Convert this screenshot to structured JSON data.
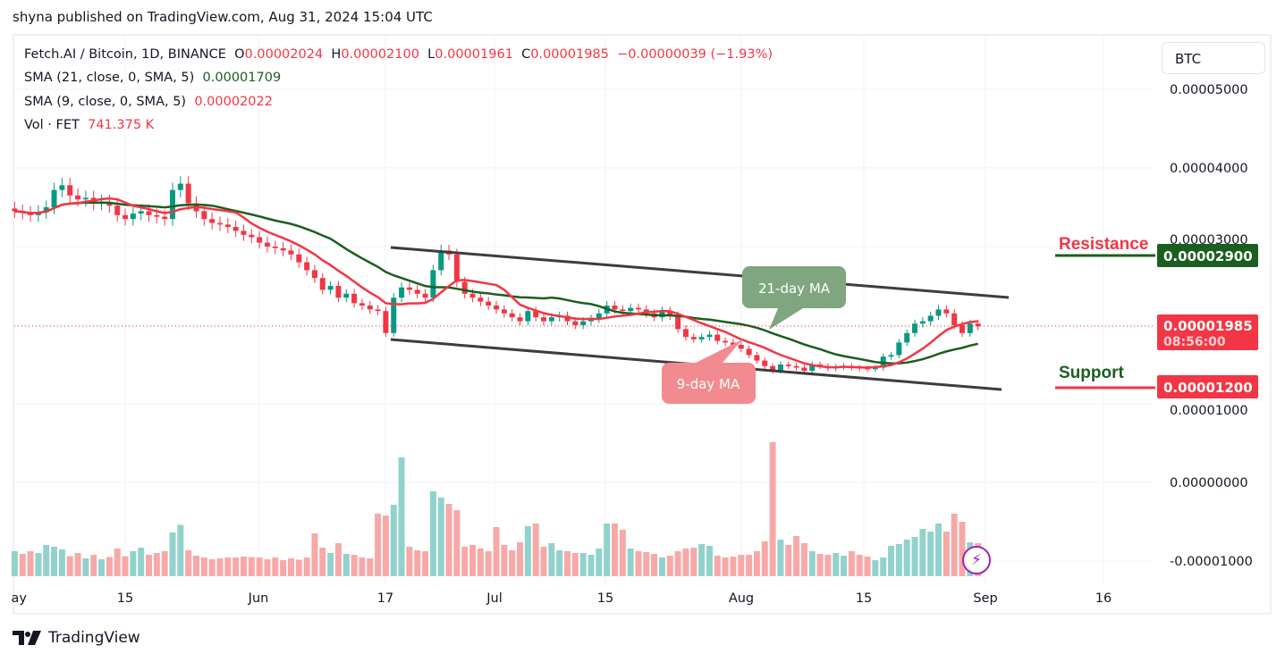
{
  "header": {
    "published": "shyna published on TradingView.com, Aug 31, 2024 15:04 UTC"
  },
  "legend": {
    "symbol": "Fetch.AI / Bitcoin, 1D, BINANCE",
    "o_label": "O",
    "o": "0.00002024",
    "h_label": "H",
    "h": "0.00002100",
    "l_label": "L",
    "l": "0.00001961",
    "c_label": "C",
    "c": "0.00001985",
    "change": "−0.00000039 (−1.93%)",
    "sma21_label": "SMA (21, close, 0, SMA, 5)",
    "sma21_value": "0.00001709",
    "sma9_label": "SMA (9, close, 0, SMA, 5)",
    "sma9_value": "0.00002022",
    "vol_label": "Vol · FET",
    "vol_value": "741.375 K"
  },
  "currency_button": "BTC",
  "price_axis": [
    "0.00005000",
    "0.00004000",
    "0.00003000",
    "0.00001000",
    "0.00000000",
    "-0.00001000"
  ],
  "price_axis_values": [
    5e-05,
    4e-05,
    3e-05,
    1e-05,
    0,
    -1e-05
  ],
  "time_axis": [
    "ay",
    "15",
    "Jun",
    "17",
    "Jul",
    "15",
    "Aug",
    "15",
    "Sep",
    "16"
  ],
  "annotations": {
    "resistance_label": "Resistance",
    "resistance_price": "0.00002900",
    "resistance_value": 2.9e-05,
    "support_label": "Support",
    "support_price": "0.00001200",
    "support_value": 1.2e-05,
    "last_price": "0.00001985",
    "countdown": "08:56:00",
    "ma21_callout": "21-day MA",
    "ma9_callout": "9-day MA"
  },
  "colors": {
    "up": "#089981",
    "down": "#f23645",
    "up_vol": "#92d2cc",
    "down_vol": "#f7a9a7",
    "sma21": "#1b5e20",
    "sma9": "#f23645",
    "channel": "#3d3d3d",
    "callout21": "#7fa67f",
    "callout9": "#f28b8f"
  },
  "brand": "TradingView",
  "chart_data": {
    "type": "candlestick",
    "start_date": "2024-05-01",
    "interval": "1D",
    "closes_1e5": [
      3.45,
      3.43,
      3.4,
      3.44,
      3.5,
      3.72,
      3.78,
      3.65,
      3.6,
      3.62,
      3.55,
      3.57,
      3.52,
      3.4,
      3.35,
      3.42,
      3.45,
      3.4,
      3.38,
      3.35,
      3.72,
      3.8,
      3.55,
      3.45,
      3.35,
      3.3,
      3.28,
      3.25,
      3.2,
      3.15,
      3.12,
      3.05,
      3.0,
      2.98,
      2.95,
      2.9,
      2.8,
      2.7,
      2.6,
      2.45,
      2.5,
      2.35,
      2.4,
      2.28,
      2.25,
      2.2,
      2.18,
      1.9,
      2.35,
      2.48,
      2.45,
      2.4,
      2.35,
      2.7,
      2.95,
      2.9,
      2.55,
      2.4,
      2.35,
      2.3,
      2.25,
      2.2,
      2.15,
      2.1,
      2.05,
      2.18,
      2.1,
      2.05,
      2.1,
      2.12,
      2.05,
      2.0,
      2.05,
      2.08,
      2.15,
      2.25,
      2.2,
      2.18,
      2.22,
      2.2,
      2.15,
      2.1,
      2.18,
      2.12,
      1.95,
      1.85,
      1.82,
      1.85,
      1.88,
      1.8,
      1.78,
      1.75,
      1.7,
      1.62,
      1.55,
      1.48,
      1.42,
      1.5,
      1.48,
      1.46,
      1.42,
      1.5,
      1.48,
      1.45,
      1.47,
      1.48,
      1.46,
      1.45,
      1.44,
      1.46,
      1.6,
      1.62,
      1.78,
      1.9,
      2.02,
      2.05,
      2.12,
      2.2,
      2.15,
      2.0,
      1.9,
      2.02,
      1.985
    ],
    "volume_k": [
      560,
      500,
      560,
      520,
      700,
      660,
      600,
      450,
      520,
      400,
      480,
      380,
      430,
      620,
      450,
      560,
      640,
      480,
      520,
      560,
      980,
      1150,
      580,
      460,
      420,
      380,
      400,
      420,
      420,
      440,
      430,
      420,
      380,
      420,
      360,
      400,
      370,
      420,
      960,
      640,
      520,
      740,
      500,
      480,
      420,
      400,
      1400,
      1360,
      1600,
      2660,
      660,
      580,
      560,
      1900,
      1760,
      1620,
      1480,
      660,
      700,
      620,
      560,
      1100,
      700,
      580,
      760,
      1120,
      1180,
      660,
      740,
      580,
      560,
      520,
      520,
      480,
      620,
      1180,
      1180,
      1040,
      620,
      560,
      540,
      500,
      420,
      460,
      560,
      620,
      640,
      720,
      680,
      460,
      420,
      440,
      480,
      480,
      560,
      780,
      3000,
      820,
      700,
      900,
      740,
      560,
      500,
      480,
      520,
      460,
      560,
      480,
      440,
      360,
      420,
      680,
      720,
      820,
      880,
      1060,
      1000,
      1180,
      1000,
      1400,
      1220,
      760,
      741.375
    ],
    "sma_periods": [
      21,
      9
    ],
    "channel_upper": [
      [
        "2024-06-17",
        2.98e-05
      ],
      [
        "2024-09-03",
        2.35e-05
      ]
    ],
    "channel_lower": [
      [
        "2024-06-17",
        1.82e-05
      ],
      [
        "2024-09-02",
        1.18e-05
      ]
    ],
    "yrange": [
      -1.18e-05,
      5.6e-05
    ]
  }
}
